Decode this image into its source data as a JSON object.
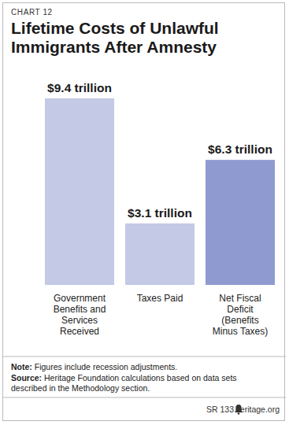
{
  "chart_data": {
    "type": "bar",
    "chart_number": "CHART 12",
    "title": "Lifetime Costs of Unlawful Immigrants After Amnesty",
    "categories": [
      "Government Benefits and Services Received",
      "Taxes Paid",
      "Net Fiscal Deficit (Benefits Minus Taxes)"
    ],
    "values": [
      9.4,
      3.1,
      6.3
    ],
    "value_labels": [
      "$9.4 trillion",
      "$3.1 trillion",
      "$6.3 trillion"
    ],
    "colors": [
      "#c4c9e6",
      "#c4c9e6",
      "#8f9bd0"
    ],
    "ylim": [
      0,
      9.4
    ],
    "data_labels": true,
    "tick_labels": "x",
    "grid": false,
    "note": "Note: Figures include recession adjustments.",
    "source": "Source: Heritage Foundation calculations based on data sets described in the Methodology section.",
    "footer": [
      "SR 133",
      "heritage.org"
    ]
  }
}
